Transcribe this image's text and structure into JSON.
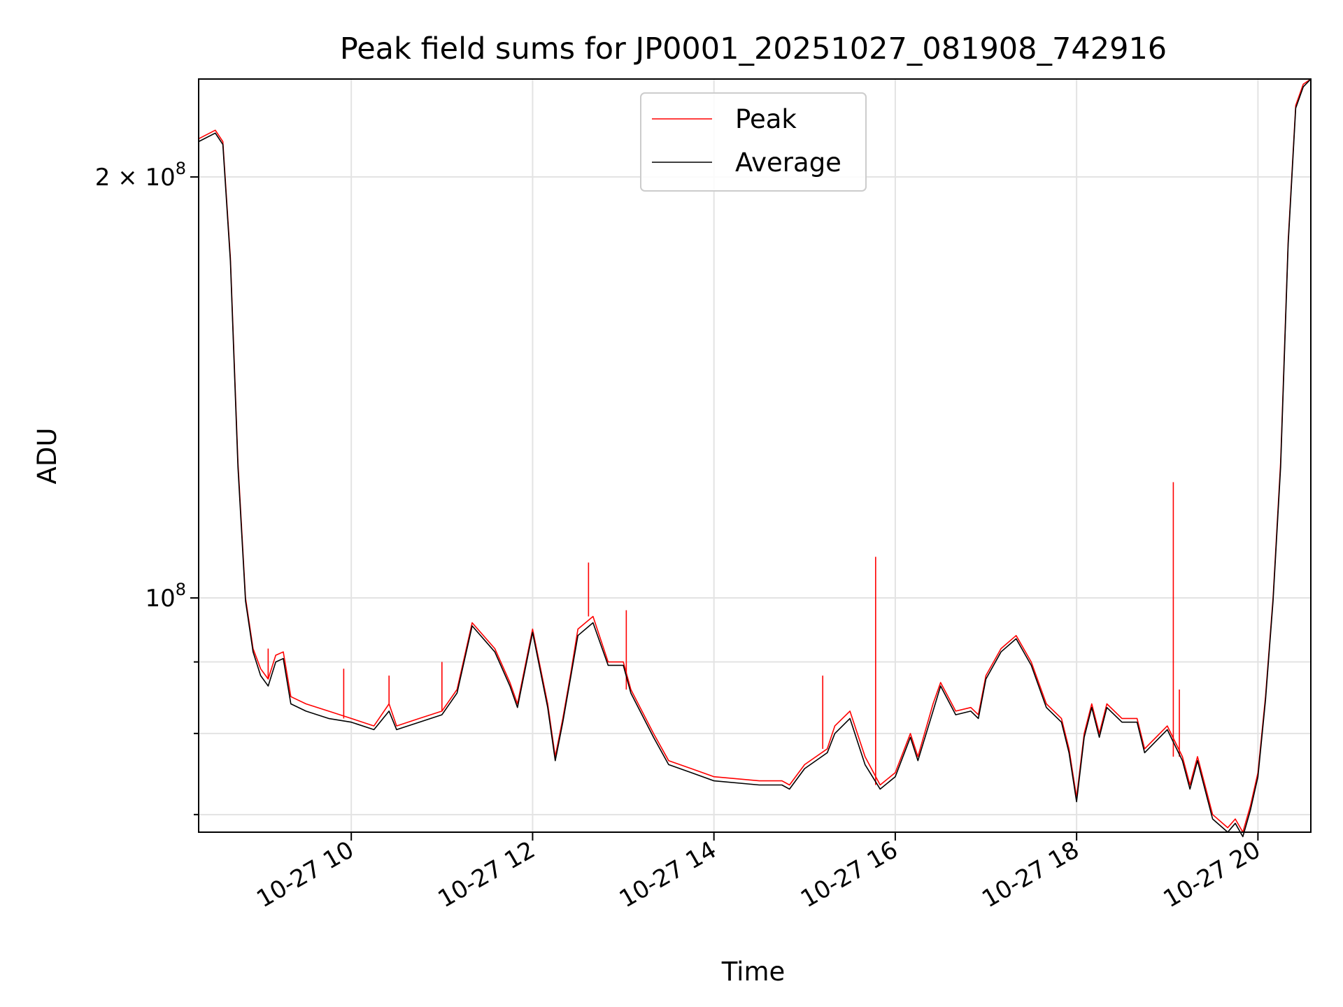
{
  "chart_data": {
    "type": "line",
    "title": "Peak field sums for JP0001_20251027_081908_742916",
    "xlabel": "Time",
    "ylabel": "ADU",
    "y_scale": "log",
    "xlim": [
      "2025-10-27 08:19",
      "2025-10-27 20:35"
    ],
    "ylim": [
      68000000,
      235000000
    ],
    "x_ticks": [
      {
        "value": "2025-10-27 10:00",
        "label": "10-27 10"
      },
      {
        "value": "2025-10-27 12:00",
        "label": "10-27 12"
      },
      {
        "value": "2025-10-27 14:00",
        "label": "10-27 14"
      },
      {
        "value": "2025-10-27 16:00",
        "label": "10-27 16"
      },
      {
        "value": "2025-10-27 18:00",
        "label": "10-27 18"
      },
      {
        "value": "2025-10-27 20:00",
        "label": "10-27 20"
      }
    ],
    "y_major_ticks": [
      {
        "value": 100000000,
        "label_base": "10",
        "label_exp": "8",
        "label_coef": ""
      },
      {
        "value": 200000000,
        "label_base": "10",
        "label_exp": "8",
        "label_coef": "2 × "
      }
    ],
    "y_minor_ticks": [
      70000000,
      80000000,
      90000000
    ],
    "grid": true,
    "legend": "upper center",
    "x": [
      "2025-10-27 08:19",
      "2025-10-27 08:30",
      "2025-10-27 08:35",
      "2025-10-27 08:40",
      "2025-10-27 08:45",
      "2025-10-27 08:50",
      "2025-10-27 08:55",
      "2025-10-27 09:00",
      "2025-10-27 09:05",
      "2025-10-27 09:10",
      "2025-10-27 09:15",
      "2025-10-27 09:20",
      "2025-10-27 09:30",
      "2025-10-27 09:45",
      "2025-10-27 10:00",
      "2025-10-27 10:15",
      "2025-10-27 10:25",
      "2025-10-27 10:30",
      "2025-10-27 10:45",
      "2025-10-27 11:00",
      "2025-10-27 11:10",
      "2025-10-27 11:20",
      "2025-10-27 11:35",
      "2025-10-27 11:45",
      "2025-10-27 11:50",
      "2025-10-27 12:00",
      "2025-10-27 12:10",
      "2025-10-27 12:15",
      "2025-10-27 12:20",
      "2025-10-27 12:25",
      "2025-10-27 12:30",
      "2025-10-27 12:40",
      "2025-10-27 12:50",
      "2025-10-27 13:00",
      "2025-10-27 13:05",
      "2025-10-27 13:20",
      "2025-10-27 13:30",
      "2025-10-27 13:45",
      "2025-10-27 14:00",
      "2025-10-27 14:30",
      "2025-10-27 14:45",
      "2025-10-27 14:50",
      "2025-10-27 15:00",
      "2025-10-27 15:15",
      "2025-10-27 15:20",
      "2025-10-27 15:30",
      "2025-10-27 15:40",
      "2025-10-27 15:50",
      "2025-10-27 16:00",
      "2025-10-27 16:10",
      "2025-10-27 16:15",
      "2025-10-27 16:25",
      "2025-10-27 16:30",
      "2025-10-27 16:40",
      "2025-10-27 16:50",
      "2025-10-27 16:55",
      "2025-10-27 17:00",
      "2025-10-27 17:10",
      "2025-10-27 17:20",
      "2025-10-27 17:30",
      "2025-10-27 17:40",
      "2025-10-27 17:50",
      "2025-10-27 17:55",
      "2025-10-27 18:00",
      "2025-10-27 18:05",
      "2025-10-27 18:10",
      "2025-10-27 18:15",
      "2025-10-27 18:20",
      "2025-10-27 18:30",
      "2025-10-27 18:40",
      "2025-10-27 18:45",
      "2025-10-27 19:00",
      "2025-10-27 19:10",
      "2025-10-27 19:15",
      "2025-10-27 19:20",
      "2025-10-27 19:30",
      "2025-10-27 19:40",
      "2025-10-27 19:45",
      "2025-10-27 19:50",
      "2025-10-27 19:55",
      "2025-10-27 20:00",
      "2025-10-27 20:05",
      "2025-10-27 20:10",
      "2025-10-27 20:15",
      "2025-10-27 20:20",
      "2025-10-27 20:25",
      "2025-10-27 20:30",
      "2025-10-27 20:35"
    ],
    "series": [
      {
        "name": "Peak",
        "color": "#ff0000",
        "values": [
          213000000,
          216000000,
          212000000,
          175000000,
          125000000,
          100000000,
          92000000,
          89000000,
          87500000,
          91000000,
          91500000,
          85000000,
          84000000,
          83000000,
          82000000,
          81000000,
          84000000,
          81000000,
          82000000,
          83000000,
          86000000,
          96000000,
          92000000,
          87000000,
          84000000,
          95000000,
          84000000,
          77000000,
          82000000,
          88000000,
          95000000,
          97000000,
          90000000,
          90000000,
          86000000,
          80000000,
          76500000,
          75500000,
          74500000,
          74000000,
          74000000,
          73500000,
          76000000,
          78000000,
          81000000,
          83000000,
          77000000,
          73500000,
          75000000,
          80000000,
          77000000,
          84000000,
          87000000,
          83000000,
          83500000,
          82500000,
          88000000,
          92000000,
          94000000,
          90000000,
          84000000,
          82000000,
          78000000,
          72000000,
          80000000,
          84000000,
          80000000,
          84000000,
          82000000,
          82000000,
          78000000,
          81000000,
          77000000,
          73500000,
          77000000,
          70000000,
          68500000,
          69500000,
          68000000,
          71000000,
          75000000,
          85000000,
          100000000,
          125000000,
          180000000,
          225000000,
          233000000,
          235000000
        ],
        "spikes": [
          {
            "x": "2025-10-27 09:05",
            "value": 92000000
          },
          {
            "x": "2025-10-27 09:55",
            "value": 89000000
          },
          {
            "x": "2025-10-27 10:25",
            "value": 88000000
          },
          {
            "x": "2025-10-27 11:00",
            "value": 90000000
          },
          {
            "x": "2025-10-27 12:37",
            "value": 106000000
          },
          {
            "x": "2025-10-27 13:02",
            "value": 98000000
          },
          {
            "x": "2025-10-27 15:12",
            "value": 88000000
          },
          {
            "x": "2025-10-27 15:47",
            "value": 107000000
          },
          {
            "x": "2025-10-27 19:04",
            "value": 121000000
          },
          {
            "x": "2025-10-27 19:08",
            "value": 86000000
          }
        ]
      },
      {
        "name": "Average",
        "color": "#000000",
        "values": [
          212000000,
          215000000,
          211000000,
          174000000,
          124000000,
          99500000,
          91500000,
          88000000,
          86500000,
          90000000,
          90500000,
          84000000,
          83000000,
          82000000,
          81500000,
          80500000,
          83000000,
          80500000,
          81500000,
          82500000,
          85500000,
          95500000,
          91500000,
          86500000,
          83500000,
          94500000,
          83500000,
          76500000,
          81500000,
          87500000,
          94000000,
          96000000,
          89500000,
          89500000,
          85500000,
          79500000,
          76000000,
          75000000,
          74000000,
          73500000,
          73500000,
          73000000,
          75500000,
          77500000,
          80000000,
          82000000,
          76000000,
          73000000,
          74500000,
          79500000,
          76500000,
          83000000,
          86500000,
          82500000,
          83000000,
          82000000,
          87500000,
          91500000,
          93500000,
          89500000,
          83500000,
          81500000,
          77500000,
          71500000,
          79500000,
          83500000,
          79500000,
          83500000,
          81500000,
          81500000,
          77500000,
          80500000,
          76500000,
          73000000,
          76500000,
          69500000,
          68000000,
          69000000,
          67500000,
          70500000,
          74500000,
          84500000,
          99500000,
          124000000,
          179000000,
          224000000,
          232000000,
          235000000
        ]
      }
    ]
  }
}
